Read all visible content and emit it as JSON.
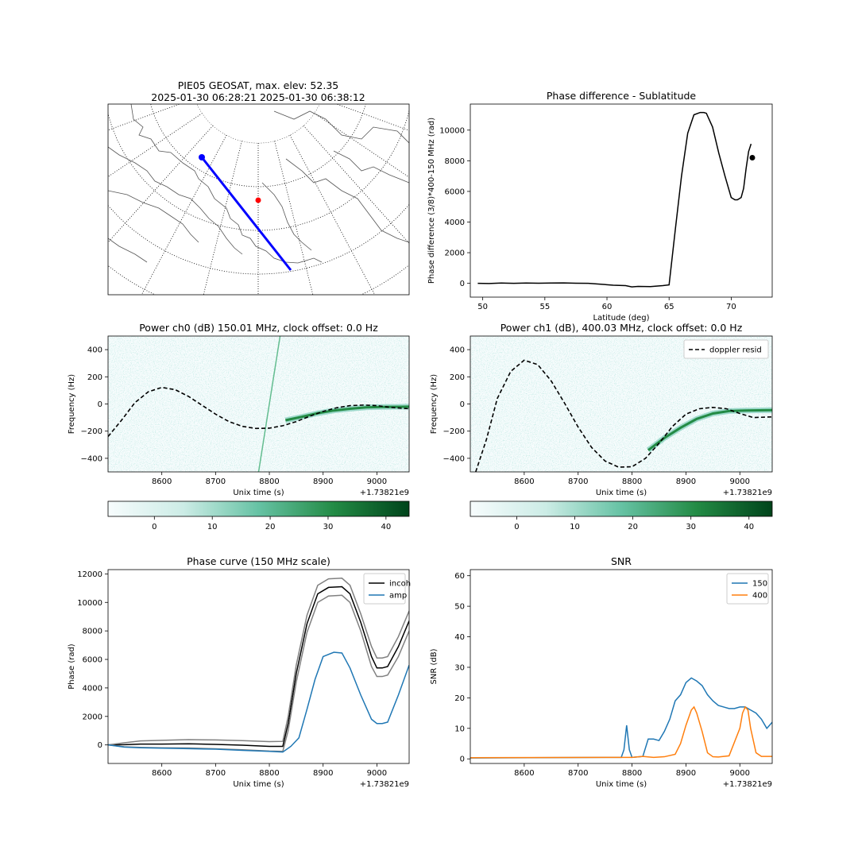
{
  "map_panel": {
    "title_line1": "PIE05 GEOSAT, max. elev: 52.35",
    "title_line2": "2025-01-30 06:28:21 2025-01-30 06:38:12",
    "colors": {
      "track": "#0000ff",
      "station": "#ff0000",
      "coast": "#555555"
    }
  },
  "colorbar": {
    "ticks": [
      "0",
      "10",
      "20",
      "30",
      "40"
    ],
    "range": [
      -8,
      44
    ],
    "cmap": "BuGn"
  },
  "chart_data": [
    {
      "id": "phase_lat",
      "type": "line",
      "title": "Phase difference - Sublatitude",
      "xlabel": "Latitude (deg)",
      "ylabel": "Phase difference (3/8)*400-150 MHz (rad)",
      "xlim": [
        49,
        73.3
      ],
      "ylim": [
        -900,
        11700
      ],
      "xticks": [
        "50",
        "55",
        "60",
        "65",
        "70"
      ],
      "yticks": [
        "0",
        "2000",
        "4000",
        "6000",
        "8000",
        "10000"
      ],
      "series": [
        {
          "color": "#000000",
          "x": [
            49.6,
            50.5,
            51.5,
            52.5,
            53.5,
            54.5,
            55.5,
            56.5,
            57.5,
            58.5,
            59.5,
            60.5,
            61.5,
            62.0,
            62.5,
            63.5,
            64.5,
            65.0,
            65.5,
            66.0,
            66.5,
            67.0,
            67.5,
            67.8,
            68.0,
            68.5,
            69.0,
            69.5,
            70.0,
            70.3,
            70.5,
            70.8,
            71.0,
            71.2,
            71.4,
            71.6
          ],
          "y": [
            0,
            -10,
            20,
            0,
            20,
            10,
            20,
            30,
            10,
            0,
            -60,
            -120,
            -150,
            -230,
            -200,
            -210,
            -150,
            -100,
            3500,
            7000,
            9800,
            11000,
            11150,
            11150,
            11100,
            10200,
            8500,
            7000,
            5600,
            5450,
            5450,
            5600,
            6200,
            7500,
            8600,
            9100
          ]
        }
      ],
      "marker": {
        "x": 71.7,
        "y": 8200
      }
    },
    {
      "id": "power_ch0",
      "type": "heatmap",
      "title": "Power ch0 (dB) 150.01 MHz, clock offset: 0.0 Hz",
      "xlabel": "Unix time (s)",
      "ylabel": "Frequency (Hz)",
      "offset_text": "+1.73821e9",
      "xlim": [
        8500,
        9060
      ],
      "ylim": [
        -500,
        500
      ],
      "xticks": [
        "8600",
        "8700",
        "8800",
        "8900",
        "9000"
      ],
      "yticks": [
        "−400",
        "−200",
        "0",
        "200",
        "400"
      ],
      "doppler_x": [
        8500,
        8525,
        8550,
        8575,
        8600,
        8625,
        8650,
        8675,
        8700,
        8725,
        8750,
        8775,
        8800,
        8825,
        8850,
        8875,
        8900,
        8925,
        8950,
        8975,
        9000,
        9025,
        9060
      ],
      "doppler_y": [
        -240,
        -120,
        10,
        90,
        122,
        105,
        55,
        -10,
        -75,
        -130,
        -165,
        -180,
        -178,
        -160,
        -130,
        -90,
        -55,
        -28,
        -12,
        -8,
        -12,
        -25,
        -35
      ],
      "signal_x": [
        8830,
        8860,
        8890,
        8920,
        8950,
        8980,
        9010,
        9060
      ],
      "signal_y": [
        -120,
        -95,
        -68,
        -48,
        -35,
        -25,
        -22,
        -20
      ],
      "streak": {
        "x0": 8780,
        "y0": -500,
        "x1": 8820,
        "y1": 500
      }
    },
    {
      "id": "power_ch1",
      "type": "heatmap",
      "title": "Power ch1 (dB), 400.03 MHz, clock offset: 0.0 Hz",
      "xlabel": "Unix time (s)",
      "ylabel": "Frequency (Hz)",
      "offset_text": "+1.73821e9",
      "legend": [
        "doppler resid"
      ],
      "xlim": [
        8500,
        9060
      ],
      "ylim": [
        -500,
        500
      ],
      "xticks": [
        "8600",
        "8700",
        "8800",
        "8900",
        "9000"
      ],
      "yticks": [
        "−400",
        "−200",
        "0",
        "200",
        "400"
      ],
      "doppler_x": [
        8510,
        8530,
        8550,
        8575,
        8600,
        8625,
        8650,
        8675,
        8700,
        8725,
        8750,
        8775,
        8800,
        8825,
        8850,
        8875,
        8900,
        8925,
        8950,
        8975,
        9000,
        9025,
        9060
      ],
      "doppler_y": [
        -500,
        -260,
        40,
        240,
        322,
        290,
        170,
        5,
        -170,
        -320,
        -420,
        -465,
        -462,
        -400,
        -290,
        -165,
        -75,
        -35,
        -25,
        -35,
        -70,
        -100,
        -95
      ],
      "signal_x": [
        8830,
        8860,
        8890,
        8920,
        8950,
        8980,
        9010,
        9060
      ],
      "signal_y": [
        -340,
        -250,
        -175,
        -110,
        -70,
        -52,
        -48,
        -45
      ]
    },
    {
      "id": "phase_curve",
      "type": "line",
      "title": "Phase curve (150 MHz scale)",
      "xlabel": "Unix time (s)",
      "ylabel": "Phase (rad)",
      "offset_text": "+1.73821e9",
      "xlim": [
        8500,
        9060
      ],
      "ylim": [
        -1300,
        12300
      ],
      "xticks": [
        "8600",
        "8700",
        "8800",
        "8900",
        "9000"
      ],
      "yticks": [
        "0",
        "2000",
        "4000",
        "6000",
        "8000",
        "10000",
        "12000"
      ],
      "legend": [
        "incoh",
        "amp"
      ],
      "series": [
        {
          "name": "incoh",
          "color": "#000000",
          "x": [
            8500,
            8530,
            8560,
            8600,
            8650,
            8700,
            8750,
            8800,
            8825,
            8835,
            8850,
            8870,
            8890,
            8910,
            8935,
            8950,
            8970,
            8990,
            9000,
            9010,
            9020,
            9040,
            9060
          ],
          "y": [
            0,
            20,
            60,
            60,
            80,
            40,
            -20,
            -100,
            -100,
            1500,
            5000,
            8500,
            10600,
            11050,
            11100,
            10600,
            8600,
            6200,
            5400,
            5400,
            5500,
            6900,
            8700
          ]
        },
        {
          "name": "",
          "color": "#808080",
          "x": [
            8500,
            8530,
            8560,
            8600,
            8650,
            8700,
            8750,
            8800,
            8825,
            8835,
            8850,
            8870,
            8890,
            8910,
            8935,
            8950,
            8970,
            8990,
            9000,
            9010,
            9020,
            9040,
            9060
          ],
          "y": [
            0,
            150,
            280,
            320,
            370,
            350,
            300,
            230,
            250,
            2000,
            5600,
            9100,
            11200,
            11650,
            11700,
            11200,
            9200,
            6900,
            6100,
            6100,
            6200,
            7600,
            9400
          ]
        },
        {
          "name": "",
          "color": "#808080",
          "x": [
            8500,
            8530,
            8560,
            8600,
            8650,
            8700,
            8750,
            8800,
            8825,
            8835,
            8850,
            8870,
            8890,
            8910,
            8935,
            8950,
            8970,
            8990,
            9000,
            9010,
            9020,
            9040,
            9060
          ],
          "y": [
            0,
            -130,
            -170,
            -200,
            -210,
            -270,
            -340,
            -430,
            -450,
            1000,
            4400,
            7900,
            10000,
            10450,
            10500,
            10000,
            8000,
            5500,
            4800,
            4800,
            4900,
            6200,
            8000
          ]
        },
        {
          "name": "amp",
          "color": "#1f77b4",
          "x": [
            8500,
            8530,
            8560,
            8600,
            8650,
            8700,
            8750,
            8800,
            8825,
            8840,
            8855,
            8870,
            8885,
            8900,
            8920,
            8935,
            8950,
            8970,
            8990,
            9000,
            9010,
            9020,
            9040,
            9060
          ],
          "y": [
            0,
            -150,
            -200,
            -230,
            -260,
            -300,
            -380,
            -450,
            -500,
            -100,
            500,
            2500,
            4600,
            6200,
            6500,
            6450,
            5400,
            3500,
            1800,
            1500,
            1500,
            1600,
            3500,
            5600
          ]
        }
      ]
    },
    {
      "id": "snr",
      "type": "line",
      "title": "SNR",
      "xlabel": "Unix time (s)",
      "ylabel": "SNR (dB)",
      "offset_text": "+1.73821e9",
      "xlim": [
        8500,
        9060
      ],
      "ylim": [
        -1.5,
        62
      ],
      "xticks": [
        "8600",
        "8700",
        "8800",
        "8900",
        "9000"
      ],
      "yticks": [
        "0",
        "10",
        "20",
        "30",
        "40",
        "50",
        "60"
      ],
      "legend": [
        "150",
        "400"
      ],
      "series": [
        {
          "name": "150",
          "color": "#1f77b4",
          "x": [
            8500,
            8780,
            8785,
            8790,
            8795,
            8800,
            8820,
            8830,
            8840,
            8850,
            8860,
            8870,
            8880,
            8890,
            8900,
            8910,
            8920,
            8930,
            8940,
            8950,
            8960,
            8970,
            8980,
            8990,
            9000,
            9010,
            9020,
            9030,
            9040,
            9050,
            9060
          ],
          "y": [
            0.3,
            0.5,
            3,
            11,
            3,
            0.5,
            0.8,
            6.5,
            6.5,
            6,
            9,
            13,
            19,
            21,
            25,
            26.5,
            25.5,
            24,
            21,
            19,
            17.5,
            17,
            16.5,
            16.5,
            17,
            17,
            16,
            15,
            13,
            10,
            12
          ]
        },
        {
          "name": "400",
          "color": "#ff7f0e",
          "x": [
            8500,
            8800,
            8820,
            8840,
            8860,
            8880,
            8890,
            8900,
            8910,
            8915,
            8920,
            8930,
            8940,
            8950,
            8960,
            8980,
            9000,
            9005,
            9010,
            9015,
            9020,
            9030,
            9040,
            9060
          ],
          "y": [
            0.4,
            0.5,
            0.8,
            0.5,
            0.7,
            1.5,
            5,
            11,
            16,
            17,
            15,
            9,
            2,
            0.7,
            0.6,
            1,
            10,
            15,
            17,
            16,
            10,
            2,
            0.8,
            0.8
          ]
        }
      ]
    }
  ]
}
